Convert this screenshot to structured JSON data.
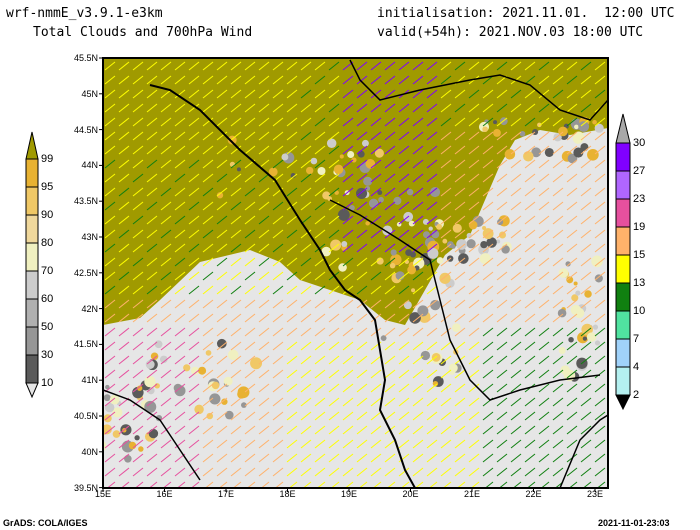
{
  "header": {
    "model": "wrf-nmmE_v3.9.1-e3km",
    "product": "Total Clouds and 700hPa Wind",
    "initialisation": "initialisation: 2021.11.01.  12:00 UTC",
    "valid": "valid(+54h): 2021.NOV.03 18:00 UTC"
  },
  "map": {
    "lat_labels": [
      "45.5N",
      "45N",
      "44.5N",
      "44N",
      "43.5N",
      "43N",
      "42.5N",
      "42N",
      "41.5N",
      "41N",
      "40.5N",
      "40N",
      "39.5N"
    ],
    "lon_labels": [
      "15E",
      "16E",
      "17E",
      "18E",
      "19E",
      "20E",
      "21E",
      "22E",
      "23E"
    ]
  },
  "cloud_colorbar": {
    "labels": [
      "99",
      "95",
      "90",
      "80",
      "70",
      "60",
      "50",
      "30",
      "10"
    ],
    "colors": [
      "#a09a00",
      "#e8b232",
      "#f0c866",
      "#f0d89c",
      "#f0f0c0",
      "#cccccc",
      "#b0b0b0",
      "#969696",
      "#5a5a5a",
      "#e6e6e6"
    ]
  },
  "wind_colorbar": {
    "labels": [
      "30",
      "27",
      "23",
      "19",
      "15",
      "13",
      "10",
      "7",
      "4",
      "2"
    ],
    "colors": [
      "#a8a8a8",
      "#8000ff",
      "#b066ff",
      "#e6509e",
      "#ffb26a",
      "#ffff00",
      "#108010",
      "#50e3a0",
      "#a0d2fa",
      "#b4f0f0"
    ]
  },
  "footer": {
    "left": "GrADS: COLA/IGES",
    "right": "2021-11-01-23:03"
  }
}
